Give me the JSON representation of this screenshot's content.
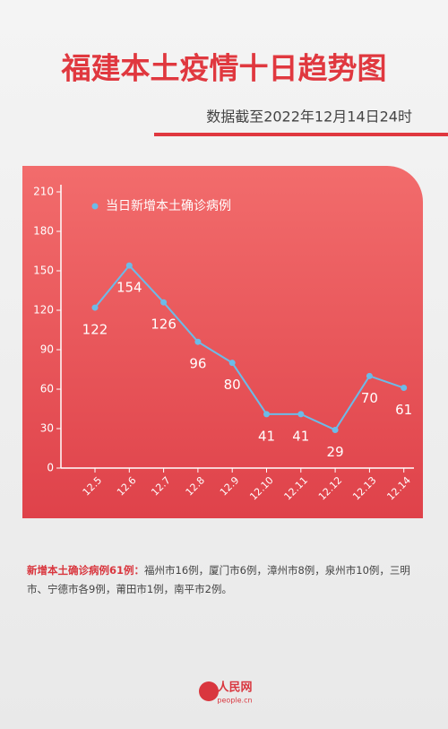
{
  "chart_data": {
    "type": "line",
    "title": "福建本土疫情十日趋势图",
    "subtitle": "数据截至2022年12月14日24时",
    "categories": [
      "12.5",
      "12.6",
      "12.7",
      "12.8",
      "12.9",
      "12.10",
      "12.11",
      "12.12",
      "12.13",
      "12.14"
    ],
    "series": [
      {
        "name": "当日新增本土确诊病例",
        "color": "#6cbbe8",
        "values": [
          122,
          154,
          126,
          96,
          80,
          41,
          41,
          29,
          70,
          61
        ]
      }
    ],
    "ylim": [
      0,
      210
    ],
    "yticks": [
      0,
      30,
      60,
      90,
      120,
      150,
      180,
      210
    ]
  },
  "note": {
    "lead": "新增本土确诊病例61例：",
    "text": "福州市16例，厦门市6例，漳州市8例，泉州市10例，三明市、宁德市各9例，莆田市1例，南平市2例。"
  },
  "logo": {
    "name": "人民网",
    "site": "people.cn"
  }
}
